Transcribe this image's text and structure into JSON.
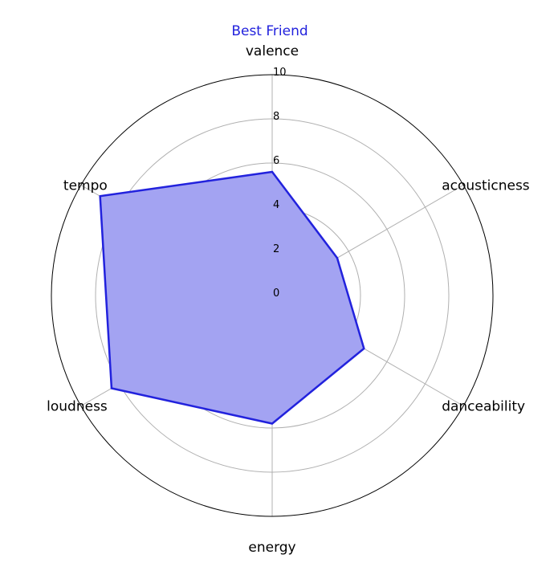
{
  "chart_data": {
    "type": "radar",
    "title": "Best Friend",
    "title_color": "#2222dd",
    "axes": [
      "valence",
      "acousticness",
      "danceability",
      "energy",
      "loudness",
      "tempo"
    ],
    "series": [
      {
        "values": [
          5.6,
          3.4,
          4.8,
          5.8,
          8.4,
          9.0
        ],
        "line_color": "#2222dd",
        "fill_color": "#a3a3f2"
      }
    ],
    "r_ticks": [
      "0",
      "2",
      "4",
      "6",
      "8",
      "10"
    ],
    "rlim": [
      0,
      10
    ],
    "grid": true
  }
}
